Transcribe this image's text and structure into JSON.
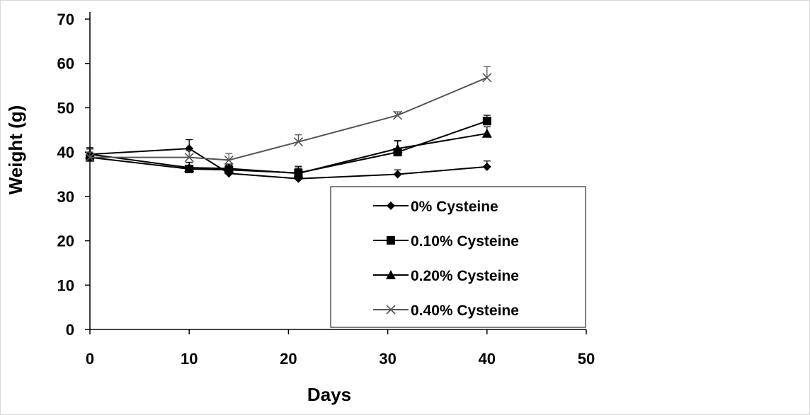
{
  "chart_data": {
    "type": "line",
    "title": "",
    "xlabel": "Days",
    "ylabel": "Weight (g)",
    "xlim": [
      0,
      50
    ],
    "ylim": [
      0,
      70
    ],
    "xticks": [
      0,
      10,
      20,
      30,
      40,
      50
    ],
    "yticks": [
      0,
      10,
      20,
      30,
      40,
      50,
      60,
      70
    ],
    "grid": false,
    "legend_position": "bottom-right",
    "x": [
      0,
      10,
      14,
      21,
      31,
      40
    ],
    "series": [
      {
        "name": "0% Cysteine",
        "marker": "diamond",
        "color": "#000000",
        "values": [
          39.5,
          40.8,
          35.2,
          34.0,
          35.0,
          36.7
        ],
        "errors": [
          1.5,
          2.0,
          1.2,
          0.8,
          1.0,
          1.3
        ]
      },
      {
        "name": "0.10% Cysteine",
        "marker": "square",
        "color": "#000000",
        "values": [
          38.8,
          36.2,
          36.0,
          35.3,
          40.0,
          47.0
        ],
        "errors": [
          1.2,
          1.5,
          1.0,
          1.5,
          2.5,
          1.3
        ]
      },
      {
        "name": "0.20% Cysteine",
        "marker": "triangle",
        "color": "#000000",
        "values": [
          39.5,
          36.5,
          36.3,
          35.2,
          40.8,
          44.2
        ],
        "errors": [
          1.2,
          1.2,
          1.0,
          1.2,
          1.8,
          1.5
        ]
      },
      {
        "name": "0.40% Cysteine",
        "marker": "x",
        "color": "#555555",
        "values": [
          38.8,
          38.8,
          38.2,
          42.3,
          48.3,
          56.8
        ],
        "errors": [
          1.2,
          1.5,
          1.5,
          1.6,
          0.8,
          2.5
        ]
      }
    ]
  }
}
